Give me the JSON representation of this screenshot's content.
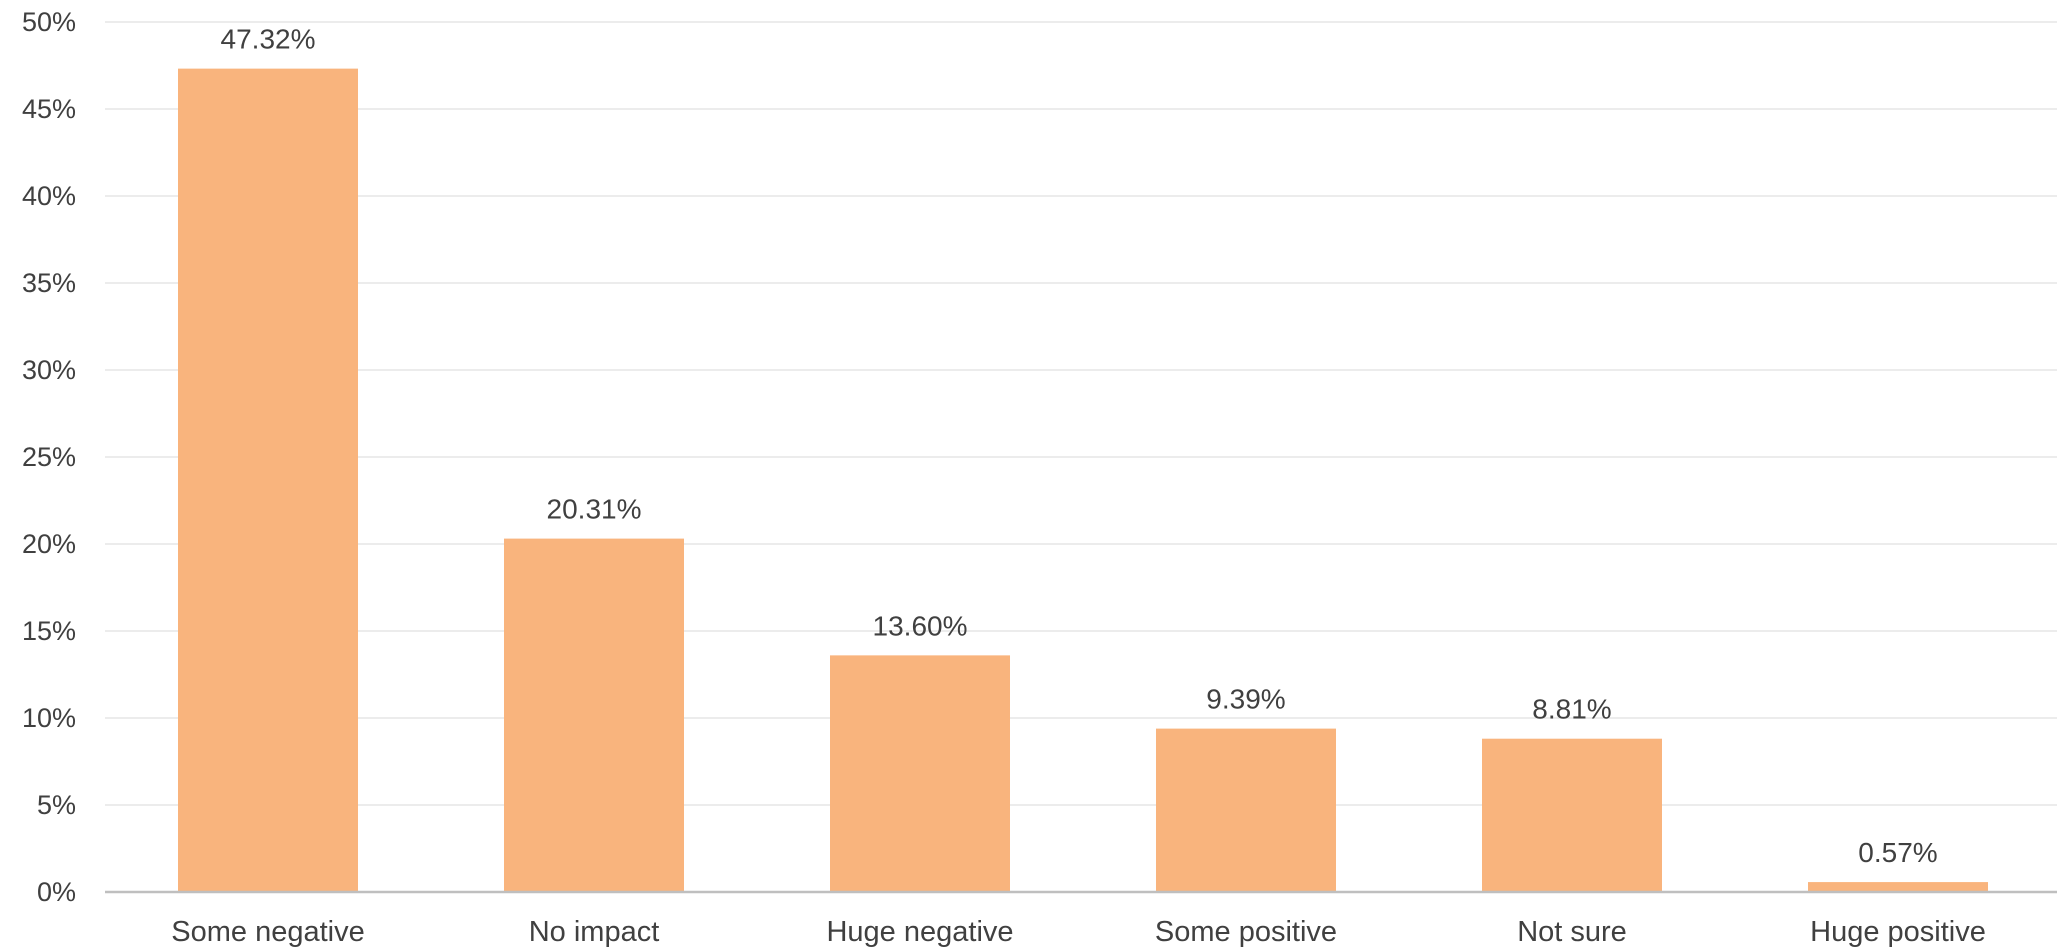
{
  "chart_data": {
    "type": "bar",
    "categories": [
      "Some negative",
      "No impact",
      "Huge negative",
      "Some positive",
      "Not sure",
      "Huge positive"
    ],
    "values": [
      47.32,
      20.31,
      13.6,
      9.39,
      8.81,
      0.57
    ],
    "value_labels": [
      "47.32%",
      "20.31%",
      "13.60%",
      "9.39%",
      "8.81%",
      "0.57%"
    ],
    "y_ticks": [
      0,
      5,
      10,
      15,
      20,
      25,
      30,
      35,
      40,
      45,
      50
    ],
    "y_tick_labels": [
      "0%",
      "5%",
      "10%",
      "15%",
      "20%",
      "25%",
      "30%",
      "35%",
      "40%",
      "45%",
      "50%"
    ],
    "ylim": [
      0,
      50
    ],
    "title": "",
    "xlabel": "",
    "ylabel": "",
    "grid": true,
    "legend": "none",
    "bar_color": "#f9b47d",
    "grid_color": "#e6e6e6",
    "axis_color": "#bfbfbf",
    "text_color": "#404040"
  }
}
